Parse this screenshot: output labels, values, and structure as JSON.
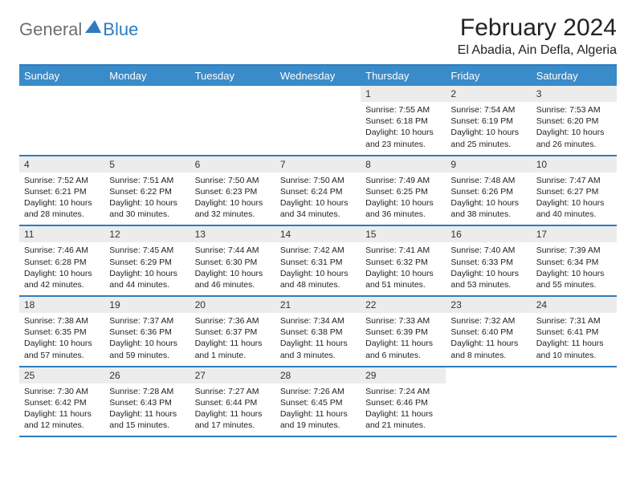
{
  "logo": {
    "general": "General",
    "blue": "Blue"
  },
  "title": "February 2024",
  "location": "El Abadia, Ain Defla, Algeria",
  "colors": {
    "brand_blue": "#3a8bc9",
    "rule_blue": "#2f7bbf",
    "daybar_gray": "#ececec",
    "logo_gray": "#6f6f6f"
  },
  "weekdays": [
    "Sunday",
    "Monday",
    "Tuesday",
    "Wednesday",
    "Thursday",
    "Friday",
    "Saturday"
  ],
  "weeks": [
    [
      null,
      null,
      null,
      null,
      {
        "n": "1",
        "sr": "Sunrise: 7:55 AM",
        "ss": "Sunset: 6:18 PM",
        "dl1": "Daylight: 10 hours",
        "dl2": "and 23 minutes."
      },
      {
        "n": "2",
        "sr": "Sunrise: 7:54 AM",
        "ss": "Sunset: 6:19 PM",
        "dl1": "Daylight: 10 hours",
        "dl2": "and 25 minutes."
      },
      {
        "n": "3",
        "sr": "Sunrise: 7:53 AM",
        "ss": "Sunset: 6:20 PM",
        "dl1": "Daylight: 10 hours",
        "dl2": "and 26 minutes."
      }
    ],
    [
      {
        "n": "4",
        "sr": "Sunrise: 7:52 AM",
        "ss": "Sunset: 6:21 PM",
        "dl1": "Daylight: 10 hours",
        "dl2": "and 28 minutes."
      },
      {
        "n": "5",
        "sr": "Sunrise: 7:51 AM",
        "ss": "Sunset: 6:22 PM",
        "dl1": "Daylight: 10 hours",
        "dl2": "and 30 minutes."
      },
      {
        "n": "6",
        "sr": "Sunrise: 7:50 AM",
        "ss": "Sunset: 6:23 PM",
        "dl1": "Daylight: 10 hours",
        "dl2": "and 32 minutes."
      },
      {
        "n": "7",
        "sr": "Sunrise: 7:50 AM",
        "ss": "Sunset: 6:24 PM",
        "dl1": "Daylight: 10 hours",
        "dl2": "and 34 minutes."
      },
      {
        "n": "8",
        "sr": "Sunrise: 7:49 AM",
        "ss": "Sunset: 6:25 PM",
        "dl1": "Daylight: 10 hours",
        "dl2": "and 36 minutes."
      },
      {
        "n": "9",
        "sr": "Sunrise: 7:48 AM",
        "ss": "Sunset: 6:26 PM",
        "dl1": "Daylight: 10 hours",
        "dl2": "and 38 minutes."
      },
      {
        "n": "10",
        "sr": "Sunrise: 7:47 AM",
        "ss": "Sunset: 6:27 PM",
        "dl1": "Daylight: 10 hours",
        "dl2": "and 40 minutes."
      }
    ],
    [
      {
        "n": "11",
        "sr": "Sunrise: 7:46 AM",
        "ss": "Sunset: 6:28 PM",
        "dl1": "Daylight: 10 hours",
        "dl2": "and 42 minutes."
      },
      {
        "n": "12",
        "sr": "Sunrise: 7:45 AM",
        "ss": "Sunset: 6:29 PM",
        "dl1": "Daylight: 10 hours",
        "dl2": "and 44 minutes."
      },
      {
        "n": "13",
        "sr": "Sunrise: 7:44 AM",
        "ss": "Sunset: 6:30 PM",
        "dl1": "Daylight: 10 hours",
        "dl2": "and 46 minutes."
      },
      {
        "n": "14",
        "sr": "Sunrise: 7:42 AM",
        "ss": "Sunset: 6:31 PM",
        "dl1": "Daylight: 10 hours",
        "dl2": "and 48 minutes."
      },
      {
        "n": "15",
        "sr": "Sunrise: 7:41 AM",
        "ss": "Sunset: 6:32 PM",
        "dl1": "Daylight: 10 hours",
        "dl2": "and 51 minutes."
      },
      {
        "n": "16",
        "sr": "Sunrise: 7:40 AM",
        "ss": "Sunset: 6:33 PM",
        "dl1": "Daylight: 10 hours",
        "dl2": "and 53 minutes."
      },
      {
        "n": "17",
        "sr": "Sunrise: 7:39 AM",
        "ss": "Sunset: 6:34 PM",
        "dl1": "Daylight: 10 hours",
        "dl2": "and 55 minutes."
      }
    ],
    [
      {
        "n": "18",
        "sr": "Sunrise: 7:38 AM",
        "ss": "Sunset: 6:35 PM",
        "dl1": "Daylight: 10 hours",
        "dl2": "and 57 minutes."
      },
      {
        "n": "19",
        "sr": "Sunrise: 7:37 AM",
        "ss": "Sunset: 6:36 PM",
        "dl1": "Daylight: 10 hours",
        "dl2": "and 59 minutes."
      },
      {
        "n": "20",
        "sr": "Sunrise: 7:36 AM",
        "ss": "Sunset: 6:37 PM",
        "dl1": "Daylight: 11 hours",
        "dl2": "and 1 minute."
      },
      {
        "n": "21",
        "sr": "Sunrise: 7:34 AM",
        "ss": "Sunset: 6:38 PM",
        "dl1": "Daylight: 11 hours",
        "dl2": "and 3 minutes."
      },
      {
        "n": "22",
        "sr": "Sunrise: 7:33 AM",
        "ss": "Sunset: 6:39 PM",
        "dl1": "Daylight: 11 hours",
        "dl2": "and 6 minutes."
      },
      {
        "n": "23",
        "sr": "Sunrise: 7:32 AM",
        "ss": "Sunset: 6:40 PM",
        "dl1": "Daylight: 11 hours",
        "dl2": "and 8 minutes."
      },
      {
        "n": "24",
        "sr": "Sunrise: 7:31 AM",
        "ss": "Sunset: 6:41 PM",
        "dl1": "Daylight: 11 hours",
        "dl2": "and 10 minutes."
      }
    ],
    [
      {
        "n": "25",
        "sr": "Sunrise: 7:30 AM",
        "ss": "Sunset: 6:42 PM",
        "dl1": "Daylight: 11 hours",
        "dl2": "and 12 minutes."
      },
      {
        "n": "26",
        "sr": "Sunrise: 7:28 AM",
        "ss": "Sunset: 6:43 PM",
        "dl1": "Daylight: 11 hours",
        "dl2": "and 15 minutes."
      },
      {
        "n": "27",
        "sr": "Sunrise: 7:27 AM",
        "ss": "Sunset: 6:44 PM",
        "dl1": "Daylight: 11 hours",
        "dl2": "and 17 minutes."
      },
      {
        "n": "28",
        "sr": "Sunrise: 7:26 AM",
        "ss": "Sunset: 6:45 PM",
        "dl1": "Daylight: 11 hours",
        "dl2": "and 19 minutes."
      },
      {
        "n": "29",
        "sr": "Sunrise: 7:24 AM",
        "ss": "Sunset: 6:46 PM",
        "dl1": "Daylight: 11 hours",
        "dl2": "and 21 minutes."
      },
      null,
      null
    ]
  ]
}
